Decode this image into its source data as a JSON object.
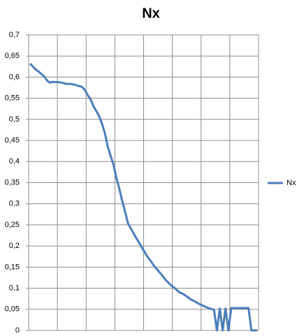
{
  "chart_data": {
    "type": "line",
    "title": "Nx",
    "categories": [
      null,
      null,
      null,
      null,
      null,
      null,
      null,
      null,
      null,
      null,
      null,
      null,
      null,
      null,
      null,
      null,
      null,
      null,
      null,
      null,
      null,
      null,
      null,
      null,
      null,
      null,
      null,
      null,
      null,
      null,
      null,
      null,
      null,
      null,
      null,
      null,
      null,
      null,
      null,
      null,
      null,
      null,
      null,
      null,
      null,
      null,
      null,
      null,
      null,
      null,
      null,
      null,
      null,
      null,
      null,
      null,
      null,
      null,
      null,
      null,
      null,
      null,
      null,
      null,
      null,
      null,
      null,
      null,
      null,
      null,
      null,
      null,
      null,
      null,
      null,
      null,
      null,
      null,
      null,
      null
    ],
    "series": [
      {
        "name": "Nx",
        "color": "#4a7ebb",
        "values": [
          0.632,
          0.625,
          0.618,
          0.613,
          0.607,
          0.601,
          0.591,
          0.587,
          0.589,
          0.588,
          0.588,
          0.587,
          0.585,
          0.584,
          0.584,
          0.583,
          0.581,
          0.579,
          0.577,
          0.57,
          0.558,
          0.548,
          0.532,
          0.52,
          0.508,
          0.49,
          0.468,
          0.436,
          0.414,
          0.393,
          0.362,
          0.337,
          0.308,
          0.283,
          0.255,
          0.242,
          0.23,
          0.218,
          0.207,
          0.195,
          0.184,
          0.173,
          0.164,
          0.154,
          0.146,
          0.138,
          0.13,
          0.121,
          0.114,
          0.107,
          0.102,
          0.096,
          0.09,
          0.087,
          0.083,
          0.078,
          0.073,
          0.07,
          0.066,
          0.062,
          0.059,
          0.056,
          0.053,
          0.051,
          0.049,
          0,
          0.052,
          0,
          0.052,
          0,
          0.053,
          0.053,
          0.053,
          0.053,
          0.053,
          0.053,
          0.053,
          0,
          0,
          0
        ]
      }
    ],
    "ylim": [
      0,
      0.7
    ],
    "yticks": [
      0,
      {
        "value": 0.05,
        "label": "0,05"
      },
      {
        "value": 0.1,
        "label": "0,1"
      },
      {
        "value": 0.15,
        "label": "0,15"
      },
      {
        "value": 0.2,
        "label": "0,2"
      },
      {
        "value": 0.25,
        "label": "0,25"
      },
      {
        "value": 0.3,
        "label": "0,3"
      },
      {
        "value": 0.35,
        "label": "0,35"
      },
      {
        "value": 0.4,
        "label": "0,4"
      },
      {
        "value": 0.45,
        "label": "0,45"
      },
      {
        "value": 0.5,
        "label": "0,5"
      },
      {
        "value": 0.55,
        "label": "0,55"
      },
      {
        "value": 0.6,
        "label": "0,6"
      },
      {
        "value": 0.65,
        "label": "0,65"
      },
      {
        "value": 0.7,
        "label": "0,7"
      }
    ],
    "grid": true,
    "legend": "right"
  }
}
